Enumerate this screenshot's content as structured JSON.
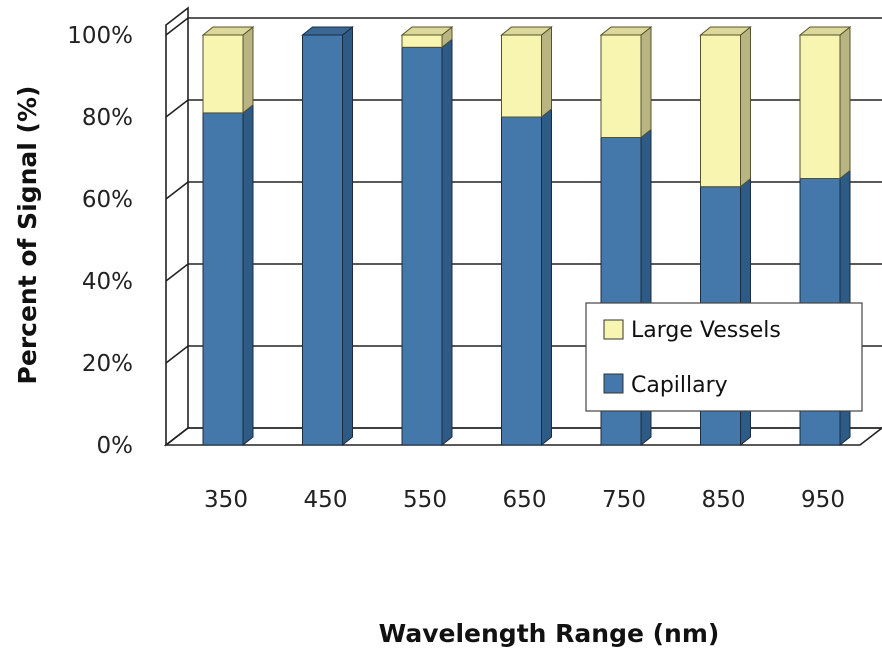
{
  "chart_data": {
    "type": "bar",
    "stacked": true,
    "style": "3d",
    "xlabel": "Wavelength Range (nm)",
    "ylabel": "Percent of Signal (%)",
    "categories": [
      "350",
      "450",
      "550",
      "650",
      "750",
      "850",
      "950"
    ],
    "ylim": [
      0,
      100
    ],
    "yticks": [
      "0%",
      "20%",
      "40%",
      "60%",
      "80%",
      "100%"
    ],
    "grid": true,
    "legend_position": "bottom-right",
    "series": [
      {
        "name": "Capillary",
        "color": "#4477AA",
        "values": [
          81,
          100,
          97,
          80,
          75,
          63,
          65
        ]
      },
      {
        "name": "Large Vessels",
        "color": "#F8F5B0",
        "values": [
          19,
          0,
          3,
          20,
          25,
          37,
          35
        ]
      }
    ],
    "legend": [
      "Large Vessels",
      "Capillary"
    ]
  }
}
